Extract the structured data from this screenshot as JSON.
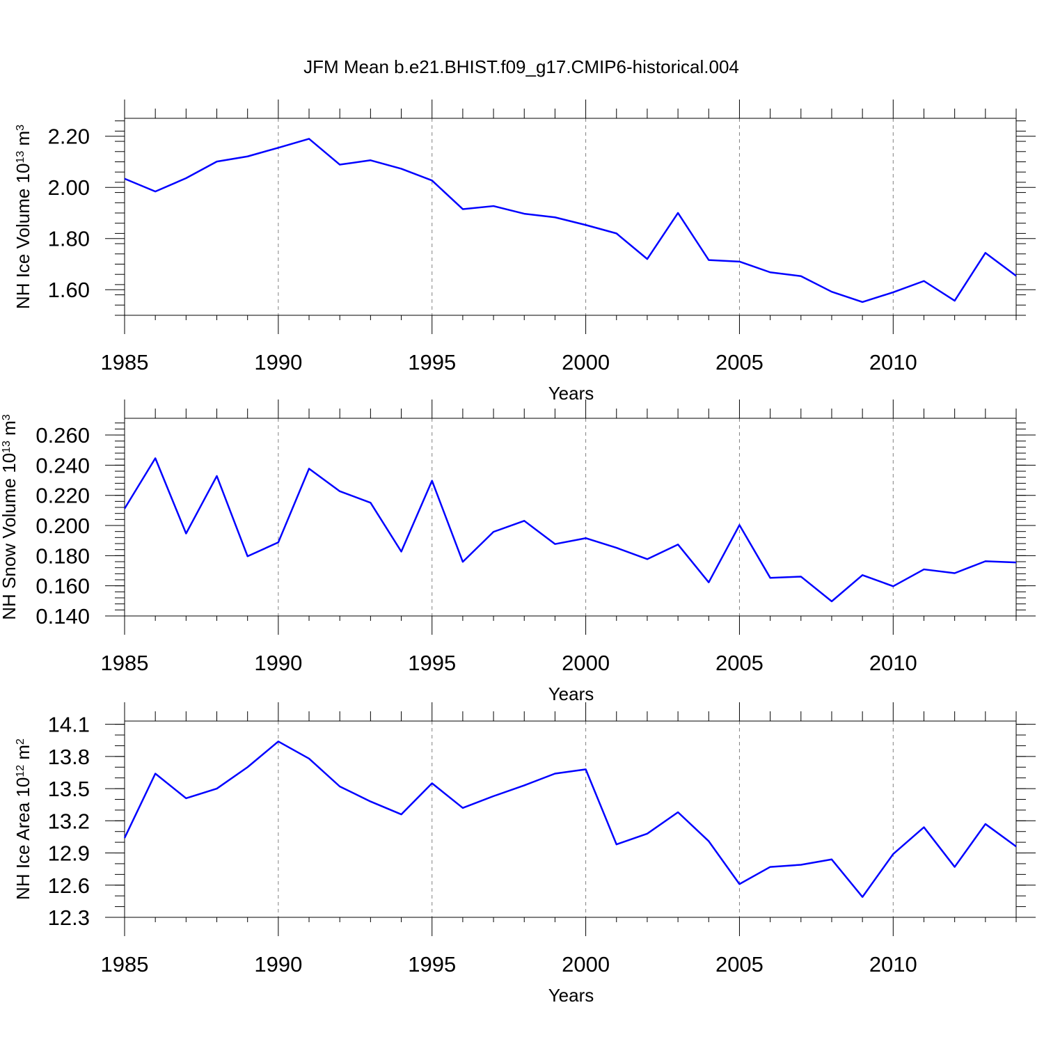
{
  "figure_title": "JFM Mean b.e21.BHIST.f09_g17.CMIP6-historical.004",
  "chart_data": [
    {
      "type": "line",
      "title": "JFM Mean b.e21.BHIST.f09_g17.CMIP6-historical.004",
      "xlabel": "Years",
      "ylabel": "NH Ice Volume 10",
      "ylabel_exp": "13",
      "ylabel_unit": " m",
      "ylabel_unit_exp": "3",
      "xlim": [
        1985,
        2014
      ],
      "ylim": [
        1.5,
        2.27
      ],
      "yticks": [
        1.6,
        1.8,
        2.0,
        2.2
      ],
      "ytick_labels": [
        "1.60",
        "1.80",
        "2.00",
        "2.20"
      ],
      "yminor_step": 0.04,
      "xticks": [
        1985,
        1990,
        1995,
        2000,
        2005,
        2010
      ],
      "xtick_labels": [
        "1985",
        "1990",
        "1995",
        "2000",
        "2005",
        "2010"
      ],
      "grid": "dashed vertical at major x ticks",
      "series": [
        {
          "name": "NH Ice Volume",
          "color": "#0000ff",
          "x": [
            1985,
            1986,
            1987,
            1988,
            1989,
            1990,
            1991,
            1992,
            1993,
            1994,
            1995,
            1996,
            1997,
            1998,
            1999,
            2000,
            2001,
            2002,
            2003,
            2004,
            2005,
            2006,
            2007,
            2008,
            2009,
            2010,
            2011,
            2012,
            2013,
            2014
          ],
          "values": [
            2.034,
            1.984,
            2.036,
            2.101,
            2.121,
            2.155,
            2.19,
            2.089,
            2.106,
            2.073,
            2.027,
            1.915,
            1.927,
            1.897,
            1.883,
            1.853,
            1.82,
            1.72,
            1.9,
            1.716,
            1.71,
            1.668,
            1.653,
            1.592,
            1.552,
            1.59,
            1.634,
            1.557,
            1.744,
            1.654
          ]
        }
      ]
    },
    {
      "type": "line",
      "xlabel": "Years",
      "ylabel": "NH Snow Volume 10",
      "ylabel_exp": "13",
      "ylabel_unit": " m",
      "ylabel_unit_exp": "3",
      "xlim": [
        1985,
        2014
      ],
      "ylim": [
        0.14,
        0.2711
      ],
      "yticks": [
        0.14,
        0.16,
        0.18,
        0.2,
        0.22,
        0.24,
        0.26
      ],
      "ytick_labels": [
        "0.140",
        "0.160",
        "0.180",
        "0.200",
        "0.220",
        "0.240",
        "0.260"
      ],
      "yminor_step": 0.004,
      "xticks": [
        1985,
        1990,
        1995,
        2000,
        2005,
        2010
      ],
      "xtick_labels": [
        "1985",
        "1990",
        "1995",
        "2000",
        "2005",
        "2010"
      ],
      "grid": "dashed vertical at major x ticks",
      "series": [
        {
          "name": "NH Snow Volume",
          "color": "#0000ff",
          "x": [
            1985,
            1986,
            1987,
            1988,
            1989,
            1990,
            1991,
            1992,
            1993,
            1994,
            1995,
            1996,
            1997,
            1998,
            1999,
            2000,
            2001,
            2002,
            2003,
            2004,
            2005,
            2006,
            2007,
            2008,
            2009,
            2010,
            2011,
            2012,
            2013,
            2014
          ],
          "values": [
            0.2112,
            0.2446,
            0.1947,
            0.2328,
            0.1796,
            0.1888,
            0.2377,
            0.2227,
            0.2151,
            0.1827,
            0.2297,
            0.1759,
            0.1958,
            0.2031,
            0.1877,
            0.1916,
            0.1852,
            0.1777,
            0.1874,
            0.1623,
            0.2003,
            0.1653,
            0.1661,
            0.1497,
            0.1671,
            0.1597,
            0.1709,
            0.1684,
            0.1763,
            0.1755
          ]
        }
      ]
    },
    {
      "type": "line",
      "xlabel": "Years",
      "ylabel": "NH Ice Area 10",
      "ylabel_exp": "12",
      "ylabel_unit": " m",
      "ylabel_unit_exp": "2",
      "xlim": [
        1985,
        2014
      ],
      "ylim": [
        12.3,
        14.13
      ],
      "yticks": [
        12.3,
        12.6,
        12.9,
        13.2,
        13.5,
        13.8,
        14.1
      ],
      "ytick_labels": [
        "12.3",
        "12.6",
        "12.9",
        "13.2",
        "13.5",
        "13.8",
        "14.1"
      ],
      "yminor_step": 0.1,
      "xticks": [
        1985,
        1990,
        1995,
        2000,
        2005,
        2010
      ],
      "xtick_labels": [
        "1985",
        "1990",
        "1995",
        "2000",
        "2005",
        "2010"
      ],
      "grid": "dashed vertical at major x ticks",
      "series": [
        {
          "name": "NH Ice Area",
          "color": "#0000ff",
          "x": [
            1985,
            1986,
            1987,
            1988,
            1989,
            1990,
            1991,
            1992,
            1993,
            1994,
            1995,
            1996,
            1997,
            1998,
            1999,
            2000,
            2001,
            2002,
            2003,
            2004,
            2005,
            2006,
            2007,
            2008,
            2009,
            2010,
            2011,
            2012,
            2013,
            2014
          ],
          "values": [
            13.04,
            13.64,
            13.41,
            13.5,
            13.7,
            13.94,
            13.78,
            13.52,
            13.38,
            13.26,
            13.55,
            13.32,
            13.43,
            13.53,
            13.64,
            13.68,
            12.98,
            13.08,
            13.28,
            13.01,
            12.61,
            12.77,
            12.79,
            12.84,
            12.49,
            12.89,
            13.14,
            12.77,
            13.17,
            12.96
          ]
        }
      ]
    }
  ]
}
